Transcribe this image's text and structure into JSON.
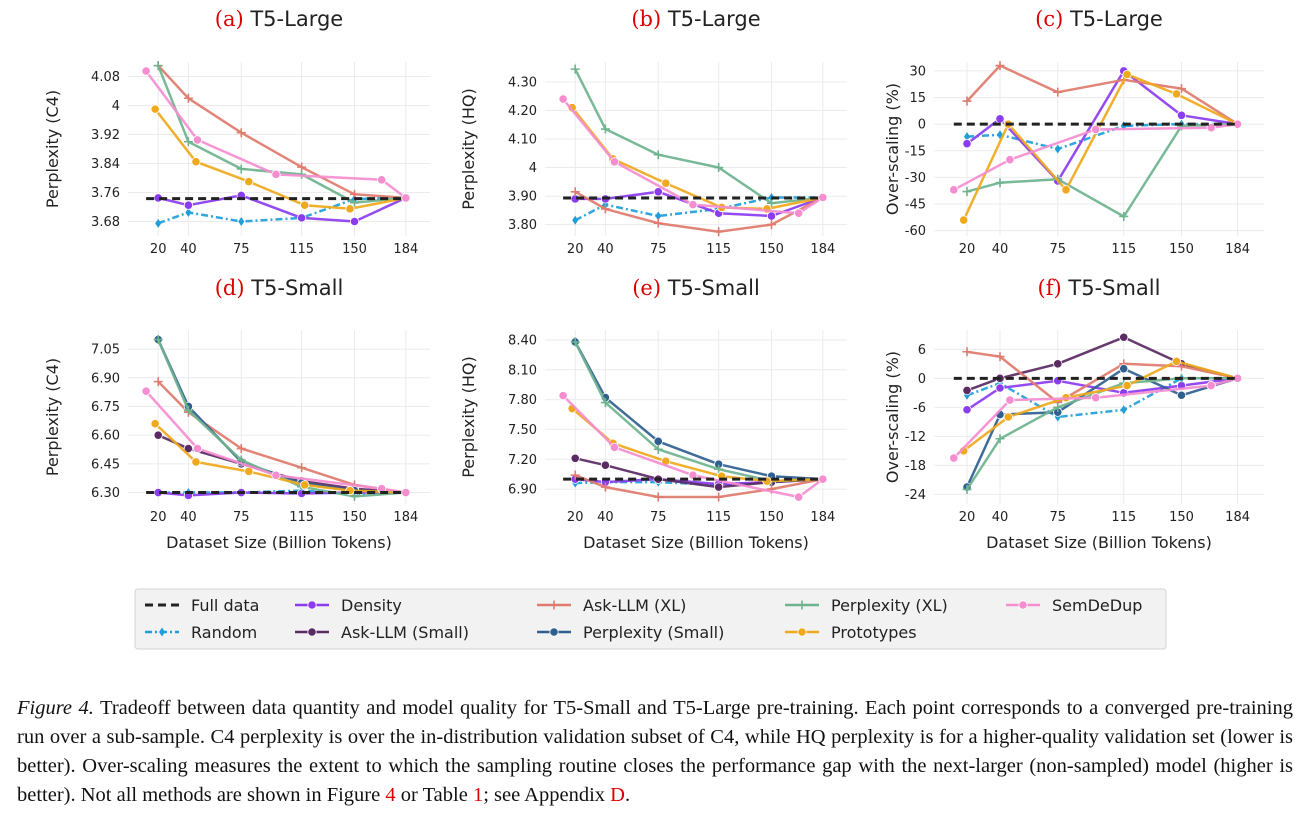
{
  "legend": [
    {
      "key": "full",
      "label": "Full data",
      "color": "#222222",
      "marker": "none",
      "dash": "8,5",
      "width": 3
    },
    {
      "key": "random",
      "label": "Random",
      "color": "#1f9ed9",
      "marker": "diamond",
      "dash": "7,3,2,3",
      "width": 2.5
    },
    {
      "key": "density",
      "label": "Density",
      "color": "#8b3cf0",
      "marker": "circle",
      "dash": "",
      "width": 2.5
    },
    {
      "key": "asksmall",
      "label": "Ask-LLM (Small)",
      "color": "#5a2a63",
      "marker": "circle",
      "dash": "",
      "width": 2.5
    },
    {
      "key": "askxl",
      "label": "Ask-LLM (XL)",
      "color": "#e07b6e",
      "marker": "plus",
      "dash": "",
      "width": 2.5
    },
    {
      "key": "pplsmall",
      "label": "Perplexity (Small)",
      "color": "#2f5f8f",
      "marker": "circle",
      "dash": "",
      "width": 2.5
    },
    {
      "key": "pplxl",
      "label": "Perplexity (XL)",
      "color": "#6fb38e",
      "marker": "plus",
      "dash": "",
      "width": 2.5
    },
    {
      "key": "proto",
      "label": "Prototypes",
      "color": "#f0a81c",
      "marker": "circle",
      "dash": "",
      "width": 2.5
    },
    {
      "key": "semdedup",
      "label": "SemDeDup",
      "color": "#f58dd0",
      "marker": "circle",
      "dash": "",
      "width": 2.5
    }
  ],
  "xlabel": "Dataset Size (Billion Tokens)",
  "caption": {
    "label": "Figure 4.",
    "text1": " Tradeoff between data quantity and model quality for T5-Small and T5-Large pre-training. Each point corresponds to a converged pre-training run over a sub-sample. C4 perplexity is over the in-distribution validation subset of C4, while HQ perplexity is for a higher-quality validation set (lower is better). Over-scaling measures the extent to which the sampling routine closes the performance gap with the next-larger (non-sampled) model (higher is better). Not all methods are shown in Figure ",
    "ref1": "4",
    "text2": " or Table ",
    "ref2": "1",
    "text3": "; see Appendix ",
    "ref3": "D",
    "text4": "."
  },
  "chart_data": [
    {
      "id": "a",
      "type": "line",
      "label": "(a)",
      "title": "T5-Large",
      "xlabel": "",
      "ylabel": "Perplexity (C4)",
      "xlim": [
        0,
        200
      ],
      "ylim": [
        3.64,
        4.12
      ],
      "xticks": [
        20,
        40,
        75,
        115,
        150,
        184
      ],
      "xtick_labels": [
        "20",
        "40",
        "75",
        "115",
        "150",
        "184"
      ],
      "yticks": [
        3.68,
        3.76,
        3.84,
        3.92,
        4.0,
        4.08
      ],
      "ytick_labels": [
        "3.68",
        "3.76",
        "3.84",
        "3.92",
        "4",
        "4.08"
      ],
      "baseline": 3.743,
      "series": [
        {
          "key": "random",
          "x": [
            20,
            40,
            75,
            115,
            150,
            184
          ],
          "y": [
            3.675,
            3.705,
            3.68,
            3.69,
            3.742,
            3.745
          ]
        },
        {
          "key": "density",
          "x": [
            20,
            40,
            75,
            115,
            150,
            184
          ],
          "y": [
            3.745,
            3.725,
            3.752,
            3.69,
            3.68,
            3.745
          ]
        },
        {
          "key": "askxl",
          "x": [
            20,
            40,
            75,
            115,
            150,
            184
          ],
          "y": [
            4.11,
            4.02,
            3.925,
            3.83,
            3.755,
            3.745
          ]
        },
        {
          "key": "pplxl",
          "x": [
            20,
            40,
            75,
            115,
            150,
            184
          ],
          "y": [
            4.11,
            3.9,
            3.825,
            3.81,
            3.732,
            3.745
          ]
        },
        {
          "key": "proto",
          "x": [
            18,
            45,
            80,
            117,
            147,
            184
          ],
          "y": [
            3.99,
            3.845,
            3.79,
            3.725,
            3.715,
            3.745
          ]
        },
        {
          "key": "semdedup",
          "x": [
            12,
            46,
            98,
            168,
            184
          ],
          "y": [
            4.095,
            3.905,
            3.81,
            3.795,
            3.745
          ]
        }
      ]
    },
    {
      "id": "b",
      "type": "line",
      "label": "(b)",
      "title": "T5-Large",
      "xlabel": "",
      "ylabel": "Perplexity (HQ)",
      "xlim": [
        0,
        200
      ],
      "ylim": [
        3.76,
        4.37
      ],
      "xticks": [
        20,
        40,
        75,
        115,
        150,
        184
      ],
      "xtick_labels": [
        "20",
        "40",
        "75",
        "115",
        "150",
        "184"
      ],
      "yticks": [
        3.8,
        3.9,
        4.0,
        4.1,
        4.2,
        4.3
      ],
      "ytick_labels": [
        "3.80",
        "3.90",
        "4",
        "4.10",
        "4.20",
        "4.30"
      ],
      "baseline": 3.893,
      "series": [
        {
          "key": "random",
          "x": [
            20,
            40,
            75,
            115,
            150,
            184
          ],
          "y": [
            3.815,
            3.87,
            3.83,
            3.855,
            3.895,
            3.895
          ]
        },
        {
          "key": "density",
          "x": [
            20,
            40,
            75,
            115,
            150,
            184
          ],
          "y": [
            3.89,
            3.89,
            3.915,
            3.84,
            3.83,
            3.895
          ]
        },
        {
          "key": "askxl",
          "x": [
            20,
            40,
            75,
            115,
            150,
            184
          ],
          "y": [
            3.915,
            3.855,
            3.805,
            3.775,
            3.8,
            3.895
          ]
        },
        {
          "key": "pplxl",
          "x": [
            20,
            40,
            75,
            115,
            150,
            184
          ],
          "y": [
            4.345,
            4.135,
            4.045,
            4.0,
            3.875,
            3.895
          ]
        },
        {
          "key": "proto",
          "x": [
            18,
            45,
            80,
            117,
            147,
            184
          ],
          "y": [
            4.21,
            4.03,
            3.945,
            3.86,
            3.855,
            3.895
          ]
        },
        {
          "key": "semdedup",
          "x": [
            12,
            46,
            98,
            168,
            184
          ],
          "y": [
            4.24,
            4.02,
            3.87,
            3.84,
            3.895
          ]
        }
      ]
    },
    {
      "id": "c",
      "type": "line",
      "label": "(c)",
      "title": "T5-Large",
      "xlabel": "",
      "ylabel": "Over-scaling (%)",
      "xlim": [
        0,
        200
      ],
      "ylim": [
        -63,
        35
      ],
      "xticks": [
        20,
        40,
        75,
        115,
        150,
        184
      ],
      "xtick_labels": [
        "20",
        "40",
        "75",
        "115",
        "150",
        "184"
      ],
      "yticks": [
        -60,
        -45,
        -30,
        -15,
        0,
        15,
        30
      ],
      "ytick_labels": [
        "-60",
        "-45",
        "-30",
        "-15",
        "0",
        "15",
        "30"
      ],
      "baseline": 0,
      "series": [
        {
          "key": "random",
          "x": [
            20,
            40,
            75,
            115,
            150,
            184
          ],
          "y": [
            -7,
            -6,
            -14,
            -1,
            0,
            0
          ]
        },
        {
          "key": "density",
          "x": [
            20,
            40,
            75,
            115,
            150,
            184
          ],
          "y": [
            -11,
            3,
            -32,
            30,
            5,
            0
          ]
        },
        {
          "key": "askxl",
          "x": [
            20,
            40,
            75,
            115,
            150,
            184
          ],
          "y": [
            13,
            33,
            18,
            25,
            20,
            0
          ]
        },
        {
          "key": "pplxl",
          "x": [
            20,
            40,
            75,
            115,
            150,
            184
          ],
          "y": [
            -38,
            -33,
            -31,
            -52,
            -1,
            0
          ]
        },
        {
          "key": "proto",
          "x": [
            18,
            45,
            80,
            117,
            147,
            184
          ],
          "y": [
            -54,
            0,
            -37,
            28,
            17,
            0
          ]
        },
        {
          "key": "semdedup",
          "x": [
            12,
            46,
            98,
            168,
            184
          ],
          "y": [
            -37,
            -20,
            -3,
            -2,
            0
          ]
        }
      ]
    },
    {
      "id": "d",
      "type": "line",
      "label": "(d)",
      "title": "T5-Small",
      "xlabel": "Dataset Size (Billion Tokens)",
      "ylabel": "Perplexity (C4)",
      "xlim": [
        0,
        200
      ],
      "ylim": [
        6.24,
        7.15
      ],
      "xticks": [
        20,
        40,
        75,
        115,
        150,
        184
      ],
      "xtick_labels": [
        "20",
        "40",
        "75",
        "115",
        "150",
        "184"
      ],
      "yticks": [
        6.3,
        6.45,
        6.6,
        6.75,
        6.9,
        7.05
      ],
      "ytick_labels": [
        "6.30",
        "6.45",
        "6.60",
        "6.75",
        "6.90",
        "7.05"
      ],
      "baseline": 6.3,
      "series": [
        {
          "key": "random",
          "x": [
            20,
            40,
            75,
            115,
            150,
            184
          ],
          "y": [
            6.3,
            6.3,
            6.3,
            6.31,
            6.29,
            6.3
          ]
        },
        {
          "key": "density",
          "x": [
            20,
            40,
            75,
            115,
            150,
            184
          ],
          "y": [
            6.3,
            6.285,
            6.3,
            6.295,
            6.3,
            6.3
          ]
        },
        {
          "key": "asksmall",
          "x": [
            20,
            40,
            75,
            115,
            150,
            184
          ],
          "y": [
            6.6,
            6.53,
            6.45,
            6.36,
            6.32,
            6.3
          ]
        },
        {
          "key": "askxl",
          "x": [
            20,
            40,
            75,
            115,
            150,
            184
          ],
          "y": [
            6.88,
            6.72,
            6.53,
            6.43,
            6.34,
            6.3
          ]
        },
        {
          "key": "pplsmall",
          "x": [
            20,
            40,
            75,
            115,
            150,
            184
          ],
          "y": [
            7.1,
            6.75,
            6.46,
            6.35,
            6.31,
            6.3
          ]
        },
        {
          "key": "pplxl",
          "x": [
            20,
            40,
            75,
            115,
            150,
            184
          ],
          "y": [
            7.1,
            6.73,
            6.47,
            6.33,
            6.28,
            6.3
          ]
        },
        {
          "key": "proto",
          "x": [
            18,
            45,
            80,
            117,
            147,
            184
          ],
          "y": [
            6.66,
            6.46,
            6.41,
            6.34,
            6.31,
            6.3
          ]
        },
        {
          "key": "semdedup",
          "x": [
            12,
            46,
            98,
            168,
            184
          ],
          "y": [
            6.83,
            6.53,
            6.39,
            6.32,
            6.3
          ]
        }
      ]
    },
    {
      "id": "e",
      "type": "line",
      "label": "(e)",
      "title": "T5-Small",
      "xlabel": "Dataset Size (Billion Tokens)",
      "ylabel": "Perplexity (HQ)",
      "xlim": [
        0,
        200
      ],
      "ylim": [
        6.75,
        8.5
      ],
      "xticks": [
        20,
        40,
        75,
        115,
        150,
        184
      ],
      "xtick_labels": [
        "20",
        "40",
        "75",
        "115",
        "150",
        "184"
      ],
      "yticks": [
        6.9,
        7.2,
        7.5,
        7.8,
        8.1,
        8.4
      ],
      "ytick_labels": [
        "6.90",
        "7.20",
        "7.50",
        "7.80",
        "8.10",
        "8.40"
      ],
      "baseline": 7.0,
      "series": [
        {
          "key": "random",
          "x": [
            20,
            40,
            75,
            115,
            150,
            184
          ],
          "y": [
            6.96,
            6.97,
            6.97,
            6.94,
            6.97,
            7.0
          ]
        },
        {
          "key": "density",
          "x": [
            20,
            40,
            75,
            115,
            150,
            184
          ],
          "y": [
            7.0,
            6.97,
            7.0,
            6.95,
            6.97,
            7.0
          ]
        },
        {
          "key": "asksmall",
          "x": [
            20,
            40,
            75,
            115,
            150,
            184
          ],
          "y": [
            7.21,
            7.14,
            7.0,
            6.92,
            6.97,
            7.0
          ]
        },
        {
          "key": "askxl",
          "x": [
            20,
            40,
            75,
            115,
            150,
            184
          ],
          "y": [
            7.04,
            6.92,
            6.82,
            6.82,
            6.9,
            7.0
          ]
        },
        {
          "key": "pplsmall",
          "x": [
            20,
            40,
            75,
            115,
            150,
            184
          ],
          "y": [
            8.38,
            7.82,
            7.38,
            7.15,
            7.03,
            7.0
          ]
        },
        {
          "key": "pplxl",
          "x": [
            20,
            40,
            75,
            115,
            150,
            184
          ],
          "y": [
            8.38,
            7.77,
            7.3,
            7.1,
            6.98,
            7.0
          ]
        },
        {
          "key": "proto",
          "x": [
            18,
            45,
            80,
            117,
            147,
            184
          ],
          "y": [
            7.71,
            7.36,
            7.18,
            7.03,
            6.98,
            7.0
          ]
        },
        {
          "key": "semdedup",
          "x": [
            12,
            46,
            98,
            168,
            184
          ],
          "y": [
            7.84,
            7.32,
            7.04,
            6.82,
            7.0
          ]
        }
      ]
    },
    {
      "id": "f",
      "type": "line",
      "label": "(f)",
      "title": "T5-Small",
      "xlabel": "Dataset Size (Billion Tokens)",
      "ylabel": "Over-scaling (%)",
      "xlim": [
        0,
        200
      ],
      "ylim": [
        -26,
        10
      ],
      "xticks": [
        20,
        40,
        75,
        115,
        150,
        184
      ],
      "xtick_labels": [
        "20",
        "40",
        "75",
        "115",
        "150",
        "184"
      ],
      "yticks": [
        -24,
        -18,
        -12,
        -6,
        0,
        6
      ],
      "ytick_labels": [
        "-24",
        "-18",
        "-12",
        "-6",
        "0",
        "6"
      ],
      "baseline": 0,
      "series": [
        {
          "key": "random",
          "x": [
            20,
            40,
            75,
            115,
            150,
            184
          ],
          "y": [
            -3.5,
            -1,
            -8,
            -6.5,
            0,
            0
          ]
        },
        {
          "key": "density",
          "x": [
            20,
            40,
            75,
            115,
            150,
            184
          ],
          "y": [
            -6.5,
            -2,
            -0.5,
            -3,
            -1.5,
            0
          ]
        },
        {
          "key": "asksmall",
          "x": [
            20,
            40,
            75,
            115,
            150,
            184
          ],
          "y": [
            -2.5,
            0,
            3,
            8.5,
            3,
            0
          ]
        },
        {
          "key": "askxl",
          "x": [
            20,
            40,
            75,
            115,
            150,
            184
          ],
          "y": [
            5.5,
            4.5,
            -5,
            3,
            2.5,
            0
          ]
        },
        {
          "key": "pplsmall",
          "x": [
            20,
            40,
            75,
            115,
            150,
            184
          ],
          "y": [
            -22.5,
            -7.5,
            -7,
            2,
            -3.5,
            0
          ]
        },
        {
          "key": "pplxl",
          "x": [
            20,
            40,
            75,
            115,
            150,
            184
          ],
          "y": [
            -23,
            -12.5,
            -6,
            -1,
            0,
            0
          ]
        },
        {
          "key": "proto",
          "x": [
            18,
            45,
            80,
            117,
            147,
            184
          ],
          "y": [
            -15,
            -8,
            -4,
            -1.5,
            3.5,
            0
          ]
        },
        {
          "key": "semdedup",
          "x": [
            12,
            46,
            98,
            168,
            184
          ],
          "y": [
            -16.5,
            -4.5,
            -4,
            -1.5,
            0
          ]
        }
      ]
    }
  ]
}
